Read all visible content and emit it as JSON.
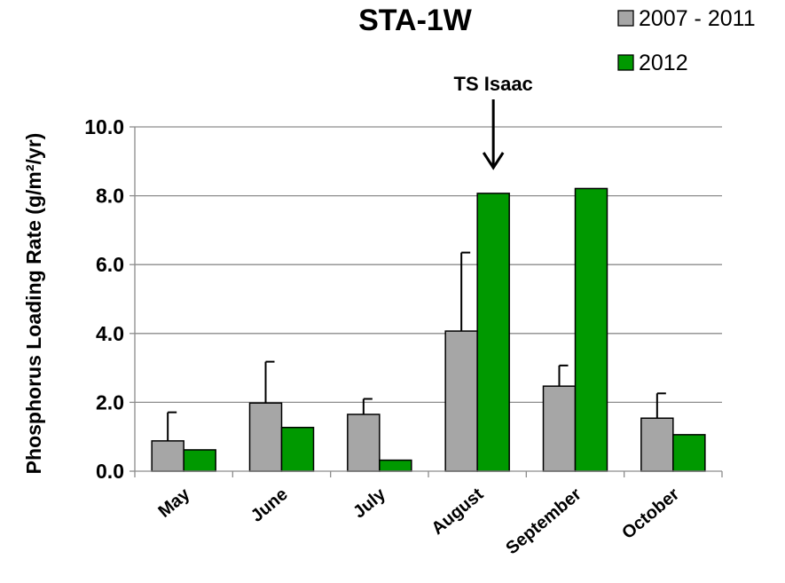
{
  "chart_data": {
    "type": "bar",
    "title": "STA-1W",
    "xlabel": "",
    "ylabel": "Phosphorus Loading Rate (g/m²/yr)",
    "ylim": [
      0,
      10
    ],
    "yticks": [
      "0.0",
      "2.0",
      "4.0",
      "6.0",
      "8.0",
      "10.0"
    ],
    "grid": true,
    "legend_position": "top-right",
    "categories": [
      "May",
      "June",
      "July",
      "August",
      "September",
      "October"
    ],
    "series": [
      {
        "name": "2007 - 2011",
        "color": "#a6a6a6",
        "values": [
          0.88,
          1.98,
          1.65,
          4.07,
          2.47,
          1.54
        ],
        "error_upper": [
          0.83,
          1.2,
          0.45,
          2.28,
          0.6,
          0.72
        ]
      },
      {
        "name": "2012",
        "color": "#009900",
        "values": [
          0.62,
          1.27,
          0.32,
          8.07,
          8.21,
          1.06
        ]
      }
    ],
    "annotations": [
      {
        "text": "TS Isaac",
        "category": "August",
        "arrow": "down"
      }
    ]
  }
}
